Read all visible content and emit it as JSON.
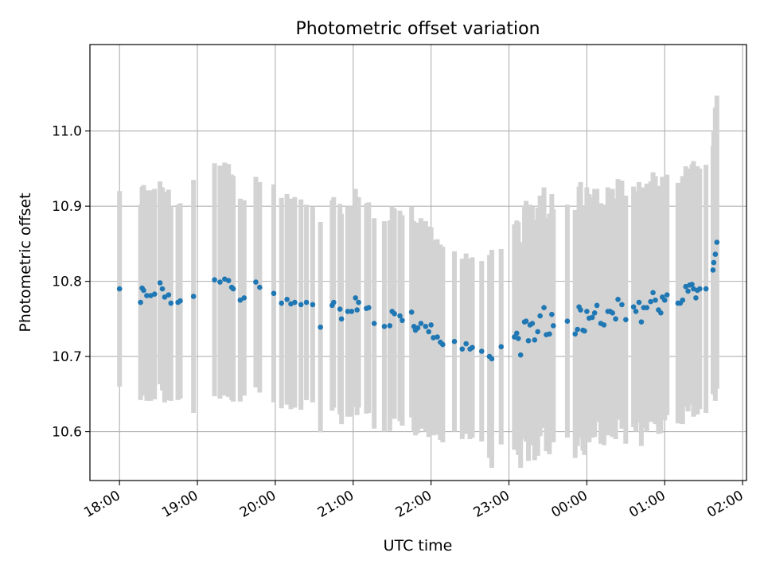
{
  "chart_data": {
    "type": "scatter",
    "title": "Photometric offset variation",
    "xlabel": "UTC time",
    "ylabel": "Photometric offset",
    "x_tick_labels": [
      "18:00",
      "19:00",
      "20:00",
      "21:00",
      "22:00",
      "23:00",
      "00:00",
      "01:00",
      "02:00"
    ],
    "y_ticks": [
      10.6,
      10.7,
      10.8,
      10.9,
      11.0
    ],
    "y_tick_labels": [
      "10.6",
      "10.7",
      "10.8",
      "10.9",
      "11.0"
    ],
    "xlim_hours_after_18utc": [
      -0.38,
      8.05
    ],
    "ylim": [
      10.535,
      11.115
    ],
    "grid": true,
    "colors": {
      "points": "#1f77b4",
      "error_bars": "#d3d3d3",
      "grid": "#b0b0b0"
    },
    "series": [
      {
        "x_hours_after_18utc": [
          0.0,
          0.27,
          0.29,
          0.31,
          0.35,
          0.4,
          0.45,
          0.52,
          0.55,
          0.58,
          0.63,
          0.66,
          0.75,
          0.78,
          0.95,
          1.22,
          1.29,
          1.35,
          1.4,
          1.44,
          1.46,
          1.55,
          1.6,
          1.75,
          1.8,
          1.98,
          2.08,
          2.15,
          2.2,
          2.25,
          2.33,
          2.4,
          2.48,
          2.58,
          2.73,
          2.75,
          2.83,
          2.85,
          2.93,
          2.98,
          3.03,
          3.05,
          3.07,
          3.17,
          3.2,
          3.27,
          3.4,
          3.47,
          3.5,
          3.53,
          3.6,
          3.63,
          3.75,
          3.78,
          3.8,
          3.83,
          3.87,
          3.93,
          3.97,
          4.0,
          4.03,
          4.08,
          4.12,
          4.15,
          4.3,
          4.4,
          4.45,
          4.5,
          4.53,
          4.65,
          4.75,
          4.78,
          4.9,
          5.07,
          5.1,
          5.12,
          5.15,
          5.2,
          5.22,
          5.25,
          5.27,
          5.3,
          5.33,
          5.37,
          5.4,
          5.45,
          5.48,
          5.52,
          5.55,
          5.57,
          5.75,
          5.85,
          5.88,
          5.9,
          5.92,
          5.95,
          5.97,
          6.0,
          6.03,
          6.07,
          6.1,
          6.13,
          6.18,
          6.22,
          6.27,
          6.3,
          6.33,
          6.37,
          6.4,
          6.45,
          6.5,
          6.6,
          6.63,
          6.67,
          6.7,
          6.73,
          6.77,
          6.82,
          6.85,
          6.88,
          6.92,
          6.95,
          6.97,
          7.0,
          7.03,
          7.17,
          7.2,
          7.23,
          7.27,
          7.3,
          7.32,
          7.35,
          7.37,
          7.4,
          7.42,
          7.45,
          7.53,
          7.62,
          7.63,
          7.65,
          7.67
        ],
        "y": [
          10.79,
          10.772,
          10.791,
          10.788,
          10.781,
          10.781,
          10.783,
          10.798,
          10.79,
          10.779,
          10.782,
          10.771,
          10.772,
          10.774,
          10.78,
          10.802,
          10.799,
          10.803,
          10.801,
          10.792,
          10.79,
          10.775,
          10.778,
          10.799,
          10.792,
          10.784,
          10.771,
          10.776,
          10.77,
          10.772,
          10.769,
          10.772,
          10.769,
          10.739,
          10.768,
          10.772,
          10.763,
          10.75,
          10.76,
          10.76,
          10.778,
          10.762,
          10.772,
          10.764,
          10.765,
          10.744,
          10.74,
          10.741,
          10.76,
          10.757,
          10.754,
          10.748,
          10.759,
          10.74,
          10.735,
          10.738,
          10.744,
          10.74,
          10.733,
          10.742,
          10.725,
          10.726,
          10.719,
          10.716,
          10.72,
          10.71,
          10.717,
          10.71,
          10.712,
          10.707,
          10.7,
          10.697,
          10.713,
          10.726,
          10.731,
          10.724,
          10.702,
          10.746,
          10.747,
          10.721,
          10.742,
          10.744,
          10.722,
          10.733,
          10.754,
          10.765,
          10.729,
          10.73,
          10.756,
          10.741,
          10.747,
          10.73,
          10.736,
          10.766,
          10.762,
          10.735,
          10.734,
          10.76,
          10.751,
          10.752,
          10.758,
          10.768,
          10.744,
          10.742,
          10.76,
          10.76,
          10.758,
          10.75,
          10.776,
          10.769,
          10.749,
          10.766,
          10.76,
          10.772,
          10.746,
          10.765,
          10.765,
          10.773,
          10.785,
          10.775,
          10.762,
          10.758,
          10.779,
          10.775,
          10.782,
          10.771,
          10.771,
          10.775,
          10.793,
          10.787,
          10.795,
          10.796,
          10.79,
          10.778,
          10.788,
          10.79,
          10.79,
          10.815,
          10.825,
          10.836,
          10.852
        ],
        "error_half_widths": [
          0.13,
          0.13,
          0.135,
          0.14,
          0.14,
          0.14,
          0.14,
          0.135,
          0.135,
          0.14,
          0.14,
          0.13,
          0.13,
          0.13,
          0.155,
          0.155,
          0.155,
          0.155,
          0.155,
          0.15,
          0.15,
          0.135,
          0.13,
          0.14,
          0.14,
          0.145,
          0.14,
          0.14,
          0.14,
          0.14,
          0.14,
          0.13,
          0.13,
          0.14,
          0.14,
          0.14,
          0.14,
          0.14,
          0.14,
          0.14,
          0.145,
          0.14,
          0.14,
          0.14,
          0.14,
          0.14,
          0.14,
          0.14,
          0.14,
          0.14,
          0.14,
          0.14,
          0.14,
          0.14,
          0.14,
          0.14,
          0.14,
          0.14,
          0.14,
          0.13,
          0.13,
          0.13,
          0.13,
          0.13,
          0.12,
          0.12,
          0.12,
          0.12,
          0.12,
          0.12,
          0.135,
          0.145,
          0.13,
          0.15,
          0.15,
          0.155,
          0.15,
          0.155,
          0.16,
          0.16,
          0.16,
          0.155,
          0.16,
          0.165,
          0.16,
          0.16,
          0.155,
          0.16,
          0.16,
          0.155,
          0.155,
          0.165,
          0.155,
          0.16,
          0.17,
          0.16,
          0.165,
          0.165,
          0.165,
          0.16,
          0.165,
          0.155,
          0.16,
          0.16,
          0.165,
          0.16,
          0.165,
          0.16,
          0.16,
          0.165,
          0.165,
          0.16,
          0.16,
          0.16,
          0.165,
          0.16,
          0.165,
          0.16,
          0.16,
          0.165,
          0.165,
          0.16,
          0.16,
          0.16,
          0.16,
          0.16,
          0.16,
          0.165,
          0.16,
          0.16,
          0.155,
          0.16,
          0.17,
          0.155,
          0.165,
          0.16,
          0.165,
          0.165,
          0.175,
          0.195,
          0.195
        ]
      }
    ]
  }
}
